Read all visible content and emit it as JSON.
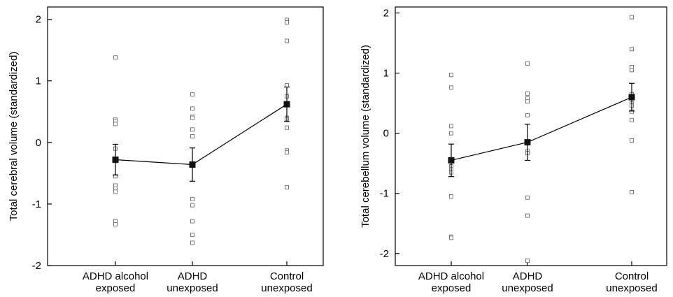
{
  "chart_data": [
    {
      "type": "scatter",
      "categories": [
        "ADHD alcohol\nexposed",
        "ADHD\nunexposed",
        "Control\nunexposed"
      ],
      "ylabel": "Total cerebral volume (standardized)",
      "ylim": [
        -2,
        2.2
      ],
      "yticks": [
        -2,
        -1,
        0,
        1,
        2
      ],
      "ytick_labels": [
        "-2",
        "-1",
        "0",
        "1",
        "2"
      ],
      "points": [
        [
          1.38,
          0.37,
          0.34,
          0.3,
          -0.1,
          -0.3,
          -0.55,
          -0.7,
          -0.75,
          -0.8,
          -1.28,
          -1.33
        ],
        [
          0.78,
          0.55,
          0.42,
          0.4,
          0.21,
          0.1,
          -0.92,
          -1.02,
          -1.28,
          -1.5,
          -1.63
        ],
        [
          1.99,
          1.95,
          1.65,
          0.93,
          0.75,
          0.4,
          0.38,
          0.24,
          -0.13,
          -0.16,
          -0.73
        ]
      ],
      "means": [
        -0.28,
        -0.36,
        0.62
      ],
      "errors": [
        0.25,
        0.27,
        0.28
      ]
    },
    {
      "type": "scatter",
      "categories": [
        "ADHD alcohol\nexposed",
        "ADHD\nunexposed",
        "Control\nunexposed"
      ],
      "ylabel": "Total cerebellum volume (standardized)",
      "ylim": [
        -2.2,
        2.1
      ],
      "yticks": [
        -2,
        -1,
        0,
        1,
        2
      ],
      "ytick_labels": [
        "-2",
        "-1",
        "0",
        "1",
        "2"
      ],
      "points": [
        [
          0.97,
          0.76,
          0.12,
          0.0,
          -0.55,
          -0.6,
          -0.65,
          -1.05,
          -1.72,
          -1.74
        ],
        [
          1.16,
          0.66,
          0.58,
          0.53,
          0.3,
          -0.3,
          -0.33,
          -1.07,
          -1.37,
          -2.12
        ],
        [
          1.93,
          1.4,
          1.1,
          1.05,
          0.65,
          0.5,
          0.46,
          0.36,
          0.22,
          -0.12,
          -0.98
        ]
      ],
      "means": [
        -0.45,
        -0.15,
        0.6
      ],
      "errors": [
        0.27,
        0.3,
        0.23
      ]
    }
  ]
}
